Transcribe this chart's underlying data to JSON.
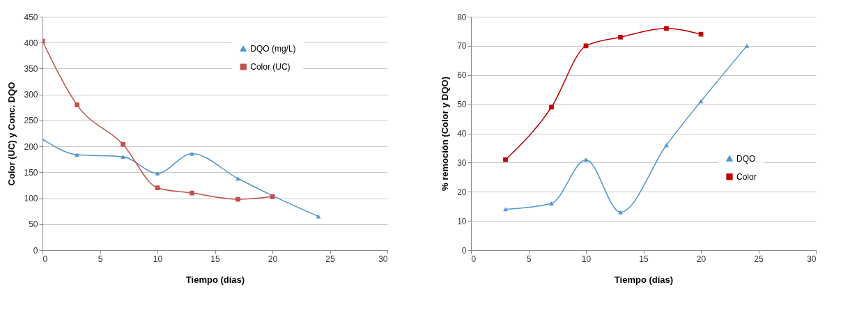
{
  "chart_data": [
    {
      "type": "line",
      "xlabel": "Tiempo (días)",
      "ylabel": "Color (UC) y Conc. DQO",
      "xlim": [
        0,
        30
      ],
      "xticks": [
        0,
        5,
        10,
        15,
        20,
        25,
        30
      ],
      "ylim": [
        0,
        450
      ],
      "yticks": [
        0,
        50,
        100,
        150,
        200,
        250,
        300,
        350,
        400,
        450
      ],
      "grid": "y",
      "legend": "top right",
      "line_style": "solid",
      "series": [
        {
          "name": "DQO (mg/L)",
          "color": "#4f94cd",
          "marker": "triangle",
          "x": [
            0,
            3,
            7,
            10,
            13,
            17,
            20,
            24
          ],
          "values": [
            214,
            184,
            180,
            148,
            186,
            138,
            105,
            65
          ]
        },
        {
          "name": "Color (UC)",
          "color": "#c0504d",
          "marker": "square",
          "x": [
            0,
            3,
            7,
            10,
            13,
            17,
            20
          ],
          "values": [
            403,
            280,
            204,
            120,
            110,
            98,
            103
          ]
        }
      ]
    },
    {
      "type": "line",
      "xlabel": "Tiempo (días)",
      "ylabel": "% remoción (Color y DQO)",
      "xlim": [
        0,
        30
      ],
      "xticks": [
        0,
        5,
        10,
        15,
        20,
        25,
        30
      ],
      "ylim": [
        0,
        80
      ],
      "yticks": [
        0,
        10,
        20,
        30,
        40,
        50,
        60,
        70,
        80
      ],
      "grid": "y",
      "legend": "right",
      "line_style": "solid",
      "series": [
        {
          "name": "DQO",
          "color": "#4f94cd",
          "marker": "triangle",
          "x": [
            3,
            7,
            10,
            13,
            17,
            20,
            24
          ],
          "values": [
            14,
            16,
            31,
            13,
            36,
            51,
            70
          ]
        },
        {
          "name": "Color",
          "color": "#c00000",
          "marker": "square",
          "x": [
            3,
            7,
            10,
            13,
            17,
            20
          ],
          "values": [
            31,
            49,
            70,
            73,
            76,
            74
          ]
        }
      ]
    }
  ]
}
